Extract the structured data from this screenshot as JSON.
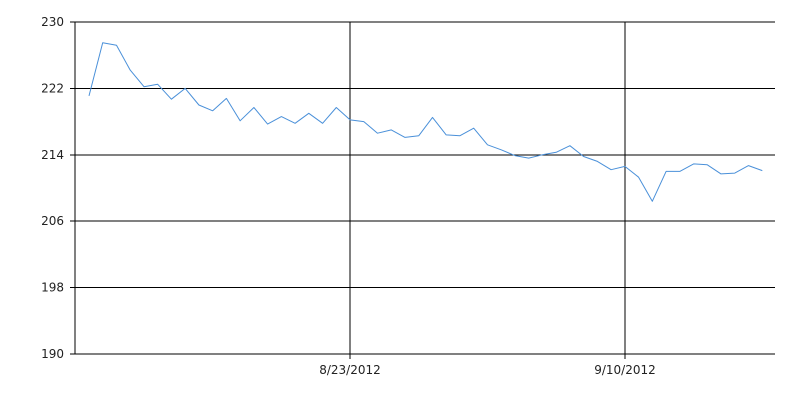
{
  "chart_data": {
    "type": "line",
    "title": "",
    "xlabel": "",
    "ylabel": "",
    "ylim": [
      190,
      230
    ],
    "yticks": [
      190,
      198,
      206,
      214,
      222,
      230
    ],
    "ytick_labels": [
      "190",
      "198",
      "206",
      "214",
      "222",
      "230"
    ],
    "xticks": [
      {
        "label": "8/23/2012",
        "index": 19
      },
      {
        "label": "9/10/2012",
        "index": 39
      }
    ],
    "grid": true,
    "series": [
      {
        "color": "#4a90d9",
        "values": [
          221.1,
          227.5,
          227.2,
          224.2,
          222.2,
          222.5,
          220.7,
          222.0,
          220.0,
          219.3,
          220.8,
          218.1,
          219.7,
          217.7,
          218.6,
          217.8,
          219.0,
          217.8,
          219.7,
          218.2,
          218.0,
          216.6,
          217.0,
          216.1,
          216.3,
          218.5,
          216.4,
          216.3,
          217.2,
          215.2,
          214.6,
          213.9,
          213.6,
          214.0,
          214.3,
          215.1,
          213.8,
          213.2,
          212.2,
          212.6,
          211.3,
          208.4,
          212.0,
          212.0,
          212.9,
          212.8,
          211.7,
          211.8,
          212.7,
          212.1
        ]
      }
    ]
  }
}
